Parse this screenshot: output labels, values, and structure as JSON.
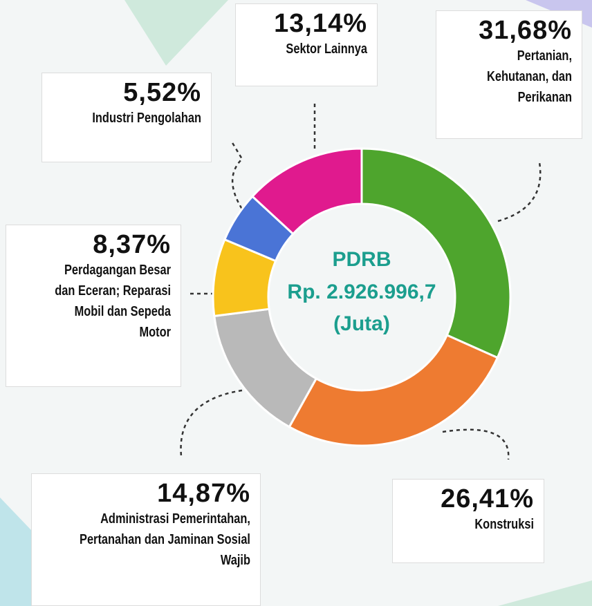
{
  "chart_data": {
    "type": "donut",
    "center_text": [
      "PDRB",
      "Rp. 2.926.996,7",
      "(Juta)"
    ],
    "categories": [
      "Pertanian, Kehutanan, dan Perikanan",
      "Konstruksi",
      "Administrasi Pemerintahan, Pertanahan dan Jaminan Sosial Wajib",
      "Perdagangan Besar dan Eceran; Reparasi Mobil dan Sepeda Motor",
      "Industri Pengolahan",
      "Sektor Lainnya"
    ],
    "values": [
      31.68,
      26.41,
      14.87,
      8.37,
      5.52,
      13.14
    ],
    "value_labels": [
      "31,68%",
      "26,41%",
      "14,87%",
      "8,37%",
      "5,52%",
      "13,14%"
    ],
    "colors": [
      "#4ea52d",
      "#ee7b31",
      "#b9b9b9",
      "#f8c31c",
      "#4a74d6",
      "#e01a8e"
    ]
  }
}
